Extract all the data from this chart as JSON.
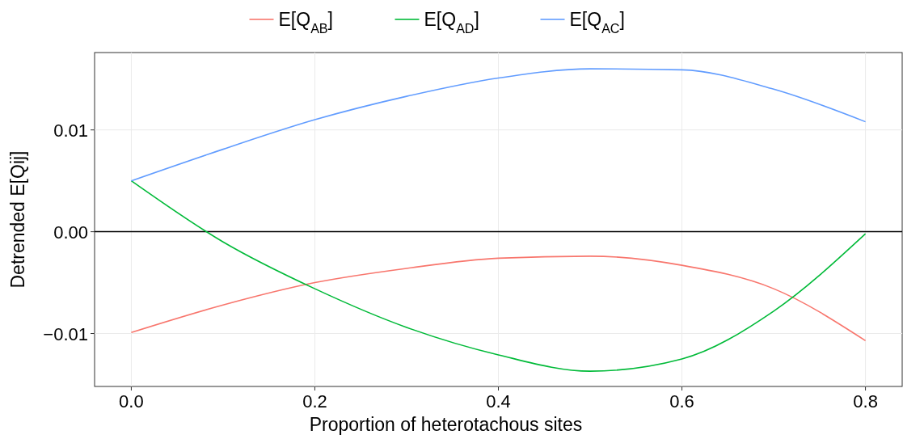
{
  "chart_data": {
    "type": "line",
    "xlabel": "Proportion of heterotachous sites",
    "ylabel": "Detrended E[Qij]",
    "x": [
      0,
      0.1,
      0.2,
      0.3,
      0.4,
      0.5,
      0.6,
      0.7,
      0.8
    ],
    "series": [
      {
        "name": "E[Q$_{AB}$]",
        "color": "#f8766d",
        "values": [
          -0.0099,
          -0.0072,
          -0.005,
          -0.0036,
          -0.0026,
          -0.0024,
          -0.0033,
          -0.0056,
          -0.0107
        ]
      },
      {
        "name": "E[Q$_{AD}$]",
        "color": "#00ba38",
        "values": [
          0.005,
          -0.001,
          -0.0056,
          -0.0094,
          -0.0121,
          -0.0137,
          -0.0125,
          -0.0078,
          -0.0002
        ]
      },
      {
        "name": "E[Q$_{AC}$]",
        "color": "#619cff",
        "values": [
          0.005,
          0.0081,
          0.011,
          0.0133,
          0.0151,
          0.016,
          0.0159,
          0.014,
          0.0108
        ]
      }
    ],
    "xlim": [
      -0.04,
      0.84
    ],
    "ylim": [
      -0.0152,
      0.0176
    ],
    "xticks": [
      {
        "value": 0,
        "label": "0.0"
      },
      {
        "value": 0.2,
        "label": "0.2"
      },
      {
        "value": 0.4,
        "label": "0.4"
      },
      {
        "value": 0.6,
        "label": "0.6"
      },
      {
        "value": 0.8,
        "label": "0.8"
      }
    ],
    "yticks": [
      {
        "value": -0.01,
        "label": "−0.01"
      },
      {
        "value": 0,
        "label": "0.00"
      },
      {
        "value": 0.01,
        "label": "0.01"
      }
    ],
    "ref_lines": [
      {
        "axis": "y",
        "value": 0,
        "color": "#000000"
      }
    ],
    "grid": true,
    "legend": "top",
    "marker": "none",
    "line_style": "solid"
  }
}
